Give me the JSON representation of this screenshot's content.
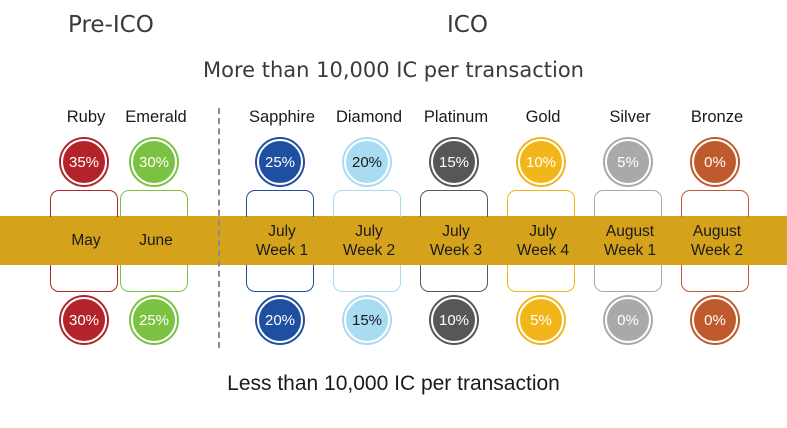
{
  "headings": {
    "pre_ico": "Pre-ICO",
    "ico": "ICO"
  },
  "top_caption": "More than 10,000 IC per transaction",
  "bottom_caption": "Less than 10,000 IC per transaction",
  "band_color": "#d4a21b",
  "tiers": [
    {
      "name": "Ruby",
      "color": "#b3242a",
      "top_rate": "35%",
      "bottom_rate": "30%",
      "date": "May"
    },
    {
      "name": "Emerald",
      "color": "#7cc242",
      "top_rate": "30%",
      "bottom_rate": "25%",
      "date": "June"
    },
    {
      "name": "Sapphire",
      "color": "#1e4fa0",
      "top_rate": "25%",
      "bottom_rate": "20%",
      "date": "July\nWeek 1"
    },
    {
      "name": "Diamond",
      "color": "#a9dbf1",
      "top_rate": "20%",
      "bottom_rate": "15%",
      "date": "July\nWeek 2",
      "text_color": "#1a1a1a"
    },
    {
      "name": "Platinum",
      "color": "#555759",
      "top_rate": "15%",
      "bottom_rate": "10%",
      "date": "July\nWeek 3"
    },
    {
      "name": "Gold",
      "color": "#f2b61b",
      "top_rate": "10%",
      "bottom_rate": "5%",
      "date": "July\nWeek 4"
    },
    {
      "name": "Silver",
      "color": "#a8a9a8",
      "top_rate": "5%",
      "bottom_rate": "0%",
      "date": "August\nWeek 1"
    },
    {
      "name": "Bronze",
      "color": "#bf5a2c",
      "top_rate": "0%",
      "bottom_rate": "0%",
      "date": "August\nWeek 2"
    }
  ]
}
